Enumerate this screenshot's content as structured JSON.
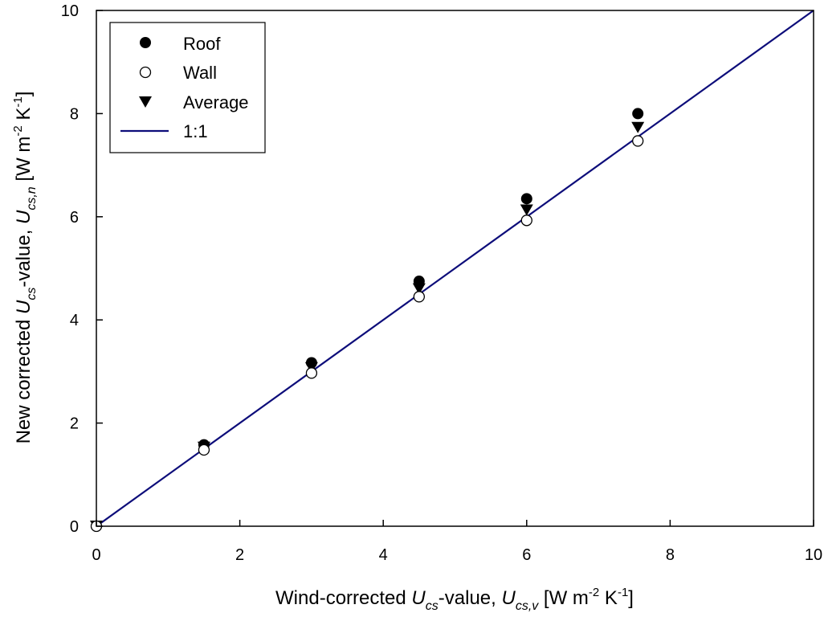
{
  "chart_data": {
    "type": "scatter",
    "title": "",
    "xlim": [
      0,
      10
    ],
    "ylim": [
      0,
      10
    ],
    "x_ticks": [
      "0",
      "2",
      "4",
      "6",
      "8",
      "10"
    ],
    "y_ticks": [
      "0",
      "2",
      "4",
      "6",
      "8",
      "10"
    ],
    "xlabel": {
      "pre": "Wind-corrected ",
      "u": "U",
      "u_sub": "cs",
      "mid": "-value, ",
      "u2": "U",
      "u2_sub": "cs,v",
      "unit_a": " [W m",
      "sup1": "-2",
      "unit_b": " K",
      "sup2": "-1",
      "unit_c": "]"
    },
    "ylabel": {
      "pre": "New corrected ",
      "u": "U",
      "u_sub": "cs",
      "mid": "-value, ",
      "u2": "U",
      "u2_sub": "cs,n",
      "unit_a": " [W m",
      "sup1": "-2",
      "unit_b": " K",
      "sup2": "-1",
      "unit_c": "]"
    },
    "series": [
      {
        "name": "Roof",
        "marker": "filled-circle",
        "x": [
          0,
          1.5,
          3.0,
          4.5,
          6.0,
          7.55
        ],
        "y": [
          0,
          1.58,
          3.17,
          4.75,
          6.35,
          8.0
        ]
      },
      {
        "name": "Wall",
        "marker": "open-circle",
        "x": [
          0,
          1.5,
          3.0,
          4.5,
          6.0,
          7.55
        ],
        "y": [
          0,
          1.48,
          2.97,
          4.45,
          5.93,
          7.47
        ]
      },
      {
        "name": "Average",
        "marker": "filled-triangle-down",
        "x": [
          0,
          1.5,
          3.0,
          4.5,
          6.0,
          7.55
        ],
        "y": [
          0,
          1.53,
          3.07,
          4.6,
          6.13,
          7.73
        ]
      },
      {
        "name": "1:1",
        "marker": "line",
        "x": [
          0,
          10
        ],
        "y": [
          0,
          10
        ]
      }
    ],
    "legend_position": "top-left",
    "grid": false,
    "line_color": "#0d0d7a",
    "marker_color": "#000000"
  }
}
